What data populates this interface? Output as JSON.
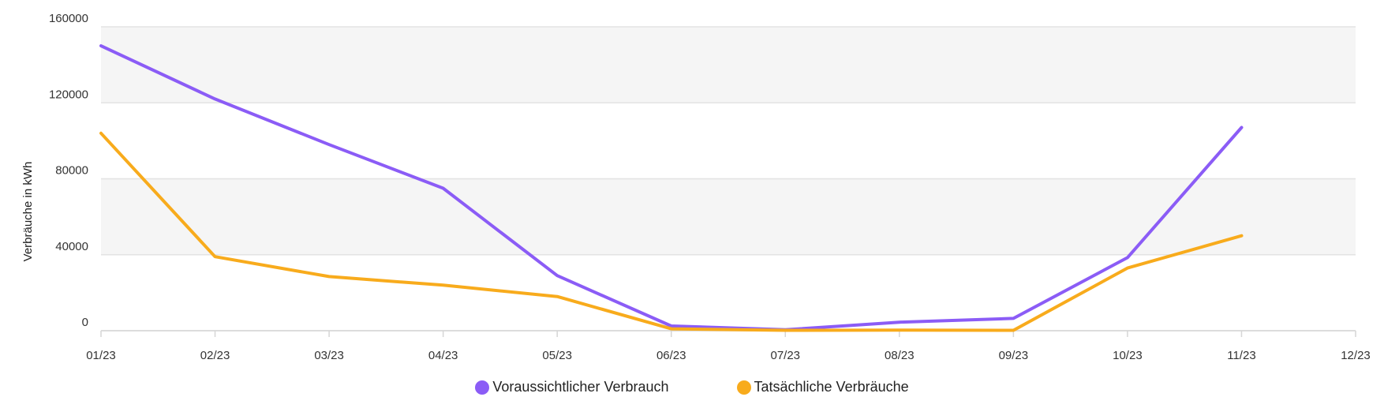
{
  "chart_data": {
    "type": "line",
    "ylabel": "Verbräuche in kWh",
    "xlabel": "",
    "categories": [
      "01/23",
      "02/23",
      "03/23",
      "04/23",
      "05/23",
      "06/23",
      "07/23",
      "08/23",
      "09/23",
      "10/23",
      "11/23",
      "12/23"
    ],
    "y_ticks": [
      "0",
      "40000",
      "80000",
      "120000",
      "160000"
    ],
    "ylim": [
      0,
      160000
    ],
    "grid": true,
    "legend_position": "bottom",
    "series": [
      {
        "name": "Voraussichtlicher Verbrauch",
        "color": "#8b5cf6",
        "values": [
          150000,
          122000,
          98000,
          75000,
          29000,
          2500,
          500,
          4500,
          6500,
          38500,
          107000,
          null
        ]
      },
      {
        "name": "Tatsächliche Verbräuche",
        "color": "#f8ab1c",
        "values": [
          104000,
          39000,
          28500,
          24000,
          18000,
          1000,
          200,
          300,
          200,
          33000,
          50000,
          null
        ]
      }
    ]
  }
}
